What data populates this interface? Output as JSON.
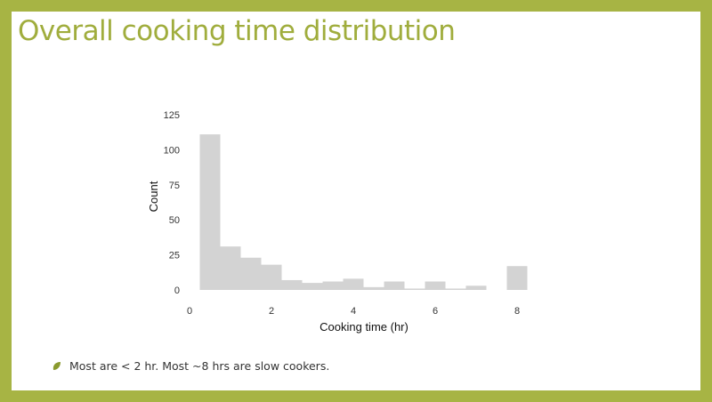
{
  "slide": {
    "title": "Overall cooking time distribution",
    "bullet": "Most are < 2 hr.  Most ~8 hrs are slow cookers."
  },
  "colors": {
    "frame": "#a7b444",
    "title": "#a0ad3d",
    "bar": "#d3d3d3",
    "bullet": "#8a9a2e"
  },
  "icons": {
    "bullet": "leaf-bullet-icon"
  },
  "chart_data": {
    "type": "bar",
    "xlabel": "Cooking time (hr)",
    "ylabel": "Count",
    "xlim": [
      0,
      8.3
    ],
    "ylim": [
      0,
      125
    ],
    "x_ticks": [
      0,
      2,
      4,
      6,
      8
    ],
    "y_ticks": [
      0,
      25,
      50,
      75,
      100,
      125
    ],
    "grid": false,
    "bins": [
      {
        "x0": 0.25,
        "x1": 0.75,
        "count": 111
      },
      {
        "x0": 0.75,
        "x1": 1.25,
        "count": 31
      },
      {
        "x0": 1.25,
        "x1": 1.75,
        "count": 23
      },
      {
        "x0": 1.75,
        "x1": 2.25,
        "count": 18
      },
      {
        "x0": 2.25,
        "x1": 2.75,
        "count": 7
      },
      {
        "x0": 2.75,
        "x1": 3.25,
        "count": 5
      },
      {
        "x0": 3.25,
        "x1": 3.75,
        "count": 6
      },
      {
        "x0": 3.75,
        "x1": 4.25,
        "count": 8
      },
      {
        "x0": 4.25,
        "x1": 4.75,
        "count": 2
      },
      {
        "x0": 4.75,
        "x1": 5.25,
        "count": 6
      },
      {
        "x0": 5.25,
        "x1": 5.75,
        "count": 1
      },
      {
        "x0": 5.75,
        "x1": 6.25,
        "count": 6
      },
      {
        "x0": 6.25,
        "x1": 6.75,
        "count": 1
      },
      {
        "x0": 6.75,
        "x1": 7.25,
        "count": 3
      },
      {
        "x0": 7.75,
        "x1": 8.25,
        "count": 17
      }
    ]
  }
}
